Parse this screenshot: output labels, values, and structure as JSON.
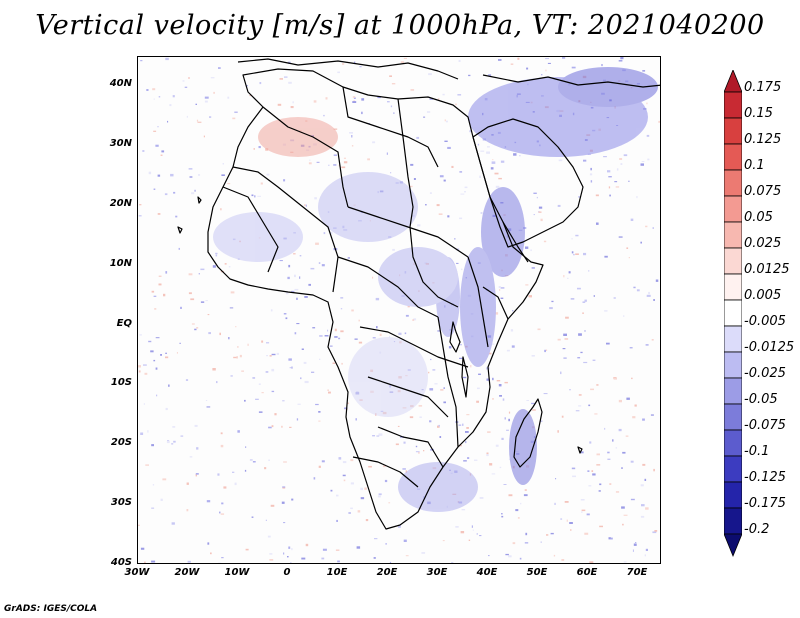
{
  "title": "Vertical velocity [m/s] at 1000hPa, VT: 2021040200",
  "credit": "GrADS: IGES/COLA",
  "axes": {
    "lat_labels": [
      "40N",
      "30N",
      "20N",
      "10N",
      "EQ",
      "10S",
      "20S",
      "30S",
      "40S"
    ],
    "lon_labels": [
      "30W",
      "20W",
      "10W",
      "0",
      "10E",
      "20E",
      "30E",
      "40E",
      "50E",
      "60E",
      "70E"
    ]
  },
  "colorbar": {
    "labels": [
      "0.175",
      "0.15",
      "0.125",
      "0.1",
      "0.075",
      "0.05",
      "0.025",
      "0.0125",
      "0.005",
      "-0.005",
      "-0.0125",
      "-0.025",
      "-0.05",
      "-0.075",
      "-0.1",
      "-0.125",
      "-0.175",
      "-0.2"
    ],
    "colors": [
      "#b01a28",
      "#c82a33",
      "#d8403f",
      "#e45a55",
      "#ec7a72",
      "#f39a92",
      "#f7b8b0",
      "#fbd8d3",
      "#fff2f0",
      "#ffffff",
      "#dcdcfa",
      "#bcbcf2",
      "#9c9ce6",
      "#7c7cda",
      "#5c5cce",
      "#3c3cc0",
      "#2424aa",
      "#16168c",
      "#0c0c6e"
    ]
  }
}
